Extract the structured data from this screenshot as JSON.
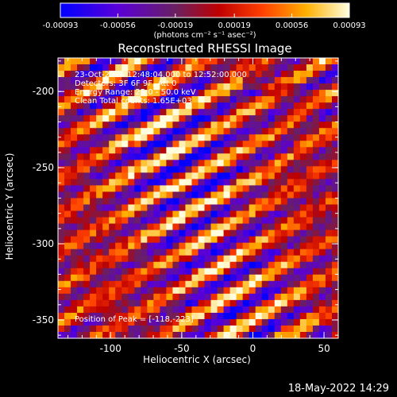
{
  "chart_data": {
    "type": "heatmap",
    "title": "Reconstructed RHESSI Image",
    "xlabel": "Heliocentric X (arcsec)",
    "ylabel": "Heliocentric Y (arcsec)",
    "xlim": [
      -137,
      60
    ],
    "ylim": [
      -362,
      -178
    ],
    "x_ticks": [
      -100,
      -50,
      0,
      50
    ],
    "y_ticks": [
      -200,
      -250,
      -300,
      -350
    ],
    "colorbar": {
      "label": "(photons cm⁻² s⁻¹ asec⁻²)",
      "range": [
        -0.00093,
        0.00093
      ],
      "tick_values": [
        -0.00093,
        -0.00056,
        -0.00019,
        0.00019,
        0.00056,
        0.00093
      ],
      "tick_labels": [
        "-0.00093",
        "-0.00056",
        "-0.00019",
        "0.00019",
        "0.00056",
        "0.00093"
      ]
    },
    "annotations": {
      "time": "23-Oct-2014 12:48:04.000 to 12:52:00.000",
      "detectors": "Detectors: 3F 6F 9F, Att 0",
      "energy": "Energy Range: 25.0 - 50.0 keV",
      "method": "Clean    Total counts: 1.65E+03",
      "peak": "Position of Peak = [-118,-223]"
    },
    "pattern": {
      "stripe_angle_deg": 30,
      "peak_position": [
        -118,
        -223
      ]
    }
  },
  "datestamp": "18-May-2022 14:29",
  "colors": {
    "background": "#000000",
    "text": "#ffffff",
    "colormap": [
      "#0000ff",
      "#6a00cc",
      "#8a2060",
      "#c00000",
      "#ff5000",
      "#ffb000",
      "#ffffe0"
    ]
  }
}
